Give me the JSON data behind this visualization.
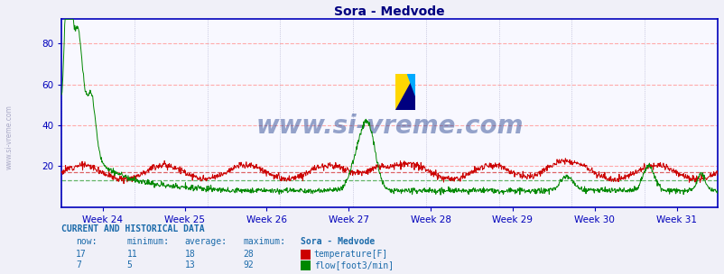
{
  "title": "Sora - Medvode",
  "title_color": "#000080",
  "bg_color": "#f0f0f8",
  "plot_bg_color": "#f8f8ff",
  "line_color_temp": "#cc0000",
  "line_color_flow": "#008800",
  "ref_line_temp": 17,
  "ref_line_flow": 13,
  "ylim": [
    0,
    92
  ],
  "yticks": [
    20,
    40,
    60,
    80
  ],
  "week_labels": [
    "Week 24",
    "Week 25",
    "Week 26",
    "Week 27",
    "Week 28",
    "Week 29",
    "Week 30",
    "Week 31"
  ],
  "grid_color_h": "#ffaaaa",
  "grid_color_v": "#aaaacc",
  "watermark": "www.si-vreme.com",
  "watermark_color": "#1a3a8a",
  "axis_color": "#0000bb",
  "tick_color": "#0000bb",
  "footer_color": "#1a6aaa",
  "footer_bold_color": "#1a6aaa",
  "n_points": 1500,
  "temp_now": 17,
  "temp_min": 11,
  "temp_avg": 18,
  "temp_max": 28,
  "flow_now": 7,
  "flow_min": 5,
  "flow_avg": 13,
  "flow_max": 92,
  "logo_yellow": "#FFD700",
  "logo_blue_dark": "#000080",
  "logo_blue_light": "#00AAFF"
}
